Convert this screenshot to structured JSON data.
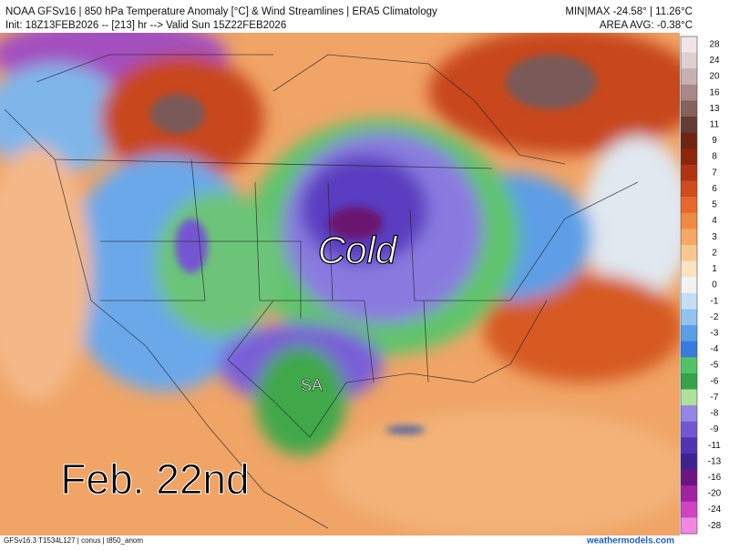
{
  "header": {
    "title": "NOAA GFSv16 | 850 hPa Temperature Anomaly [°C] & Wind Streamlines | ERA5 Climatology",
    "init": "Init: 18Z13FEB2026 -- [213] hr --> Valid Sun 15Z22FEB2026",
    "minmax": "MIN|MAX -24.58° | 11.26°C",
    "area_avg": "AREA AVG: -0.38°C"
  },
  "annotations": {
    "cold": "Cold",
    "city": "SA",
    "date": "Feb. 22nd"
  },
  "colorbar": [
    {
      "label": 28,
      "color": "#f2e4e8"
    },
    {
      "label": 24,
      "color": "#e0cfd0"
    },
    {
      "label": 20,
      "color": "#c9b0b0"
    },
    {
      "label": 16,
      "color": "#a88888"
    },
    {
      "label": 13,
      "color": "#86625e"
    },
    {
      "label": 11,
      "color": "#643c36"
    },
    {
      "label": 9,
      "color": "#6e2412"
    },
    {
      "label": 8,
      "color": "#8e260c"
    },
    {
      "label": 7,
      "color": "#b03414"
    },
    {
      "label": 6,
      "color": "#d04c1c"
    },
    {
      "label": 5,
      "color": "#e6692a"
    },
    {
      "label": 4,
      "color": "#ef8a44"
    },
    {
      "label": 3,
      "color": "#f4a864"
    },
    {
      "label": 2,
      "color": "#f8c892"
    },
    {
      "label": 1,
      "color": "#fbe2c4"
    },
    {
      "label": 0,
      "color": "#f2f2f2"
    },
    {
      "label": -1,
      "color": "#c6def4"
    },
    {
      "label": -2,
      "color": "#94c2ee"
    },
    {
      "label": -3,
      "color": "#5c9ee6"
    },
    {
      "label": -4,
      "color": "#3a7ade"
    },
    {
      "label": -5,
      "color": "#50c464"
    },
    {
      "label": -6,
      "color": "#38a24a"
    },
    {
      "label": -7,
      "color": "#aee29c"
    },
    {
      "label": -8,
      "color": "#9486e2"
    },
    {
      "label": -9,
      "color": "#7456d2"
    },
    {
      "label": -11,
      "color": "#5234b2"
    },
    {
      "label": -13,
      "color": "#3e2290"
    },
    {
      "label": -16,
      "color": "#6e1480"
    },
    {
      "label": -20,
      "color": "#a024a2"
    },
    {
      "label": -24,
      "color": "#d044c2"
    },
    {
      "label": -28,
      "color": "#f288e2"
    }
  ],
  "footer": {
    "model": "GFSv16.3 T1534L127 | conus | t850_anom",
    "site": "weathermodels.com"
  }
}
